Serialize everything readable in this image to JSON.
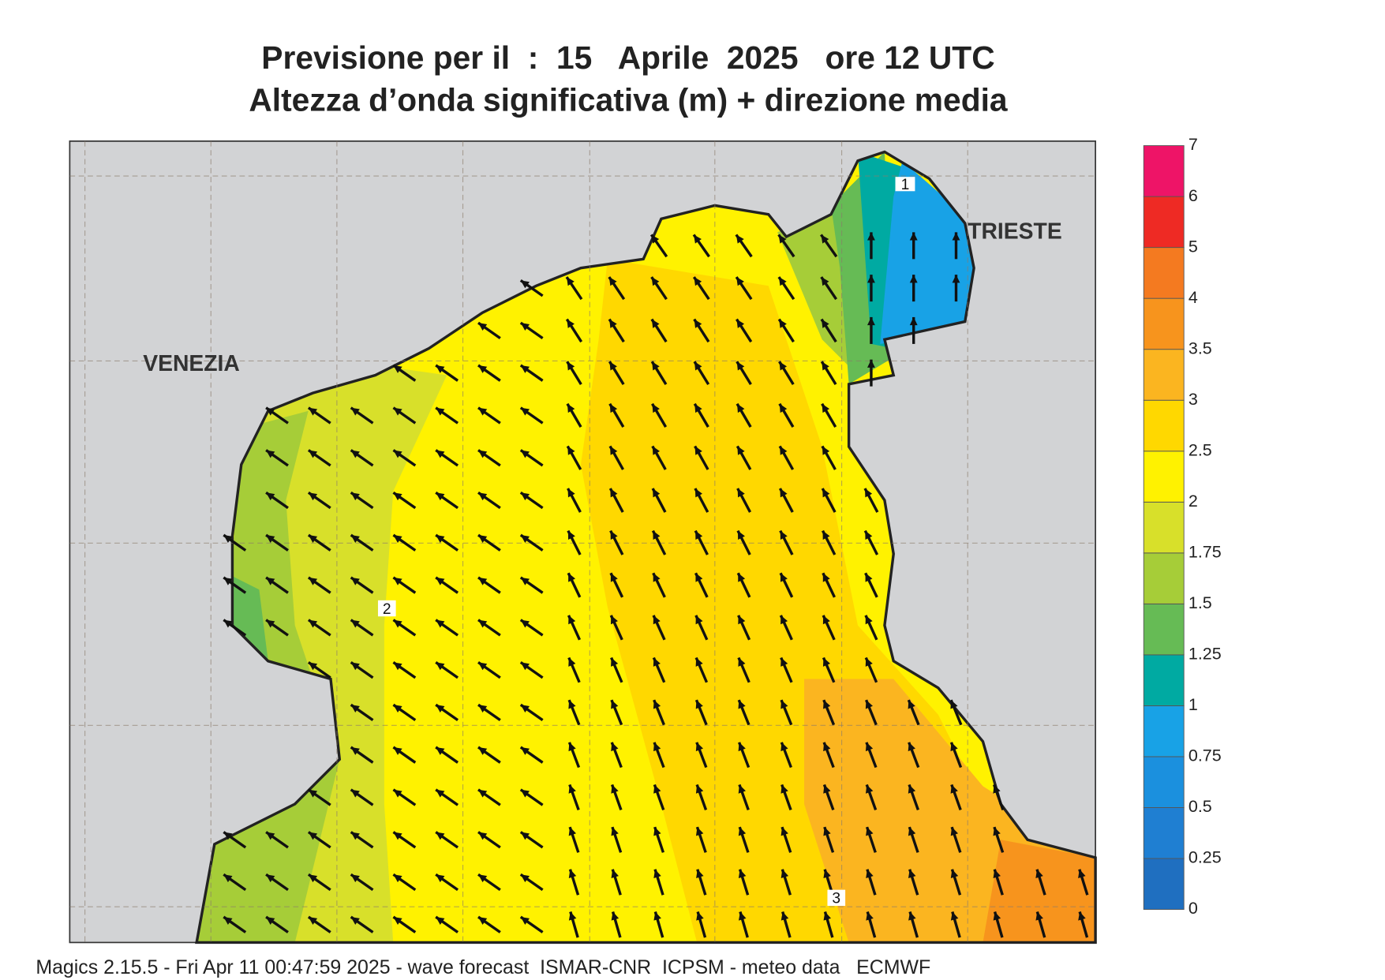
{
  "header": {
    "title": "Previsione per il  :  15   Aprile  2025   ore 12 UTC",
    "subtitle": "Altezza d’onda significativa (m) + direzione media"
  },
  "map": {
    "place_labels": [
      "VENEZIA",
      "TRIESTE"
    ],
    "contour_labels": [
      "1",
      "2",
      "3"
    ]
  },
  "colorbar": {
    "ticks": [
      0,
      0.25,
      0.5,
      0.75,
      1,
      1.25,
      1.5,
      1.75,
      2,
      2.5,
      3,
      3.5,
      4,
      5,
      6,
      7
    ],
    "colors": [
      "#1f6fc0",
      "#1f7fd2",
      "#1b90de",
      "#18a2e6",
      "#00aaa2",
      "#66bb55",
      "#a6cd38",
      "#d8e02a",
      "#fff200",
      "#ffd800",
      "#fbb520",
      "#f7941d",
      "#f47a20",
      "#ee2a24",
      "#ee1467"
    ]
  },
  "footer": "Magics 2.15.5 - Fri Apr 11 00:47:59 2025 - wave forecast  ISMAR-CNR  ICPSM - meteo data   ECMWF"
}
